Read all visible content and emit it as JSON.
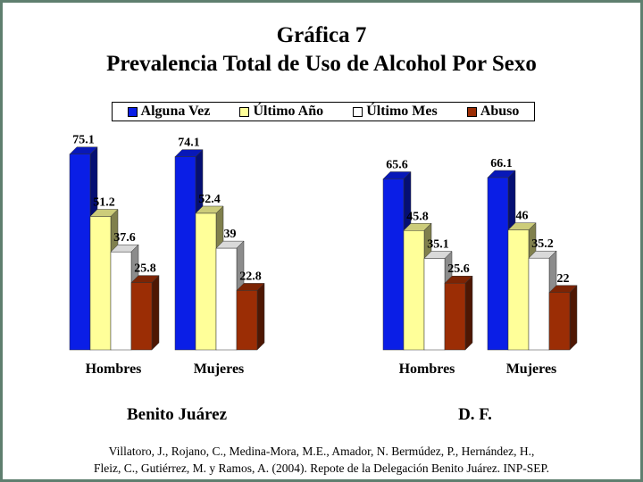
{
  "title_line1": "Gráfica 7",
  "title_line2": "Prevalencia Total de Uso de Alcohol Por Sexo",
  "legend": [
    {
      "label": "Alguna Vez",
      "color": "#0a1ee6"
    },
    {
      "label": "Último Año",
      "color": "#ffff99"
    },
    {
      "label": "Último Mes",
      "color": "#ffffff"
    },
    {
      "label": "Abuso",
      "color": "#9b2d05"
    }
  ],
  "group_titles": [
    "Benito Juárez",
    "D. F."
  ],
  "source_line1": "Villatoro, J., Rojano, C., Medina-Mora, M.E., Amador, N. Bermúdez, P., Hernández, H.,",
  "source_line2": "Fleiz, C., Gutiérrez, M. y Ramos, A. (2004). Repote de la Delegación Benito Juárez. INP-SEP.",
  "chart_data": [
    {
      "type": "bar",
      "group": "Benito Juárez",
      "categories": [
        "Hombres",
        "Mujeres"
      ],
      "series": [
        {
          "name": "Alguna Vez",
          "values": [
            75.1,
            74.1
          ]
        },
        {
          "name": "Último Año",
          "values": [
            51.2,
            52.4
          ]
        },
        {
          "name": "Último Mes",
          "values": [
            37.6,
            39
          ]
        },
        {
          "name": "Abuso",
          "values": [
            25.8,
            22.8
          ]
        }
      ]
    },
    {
      "type": "bar",
      "group": "D. F.",
      "categories": [
        "Hombres",
        "Mujeres"
      ],
      "series": [
        {
          "name": "Alguna Vez",
          "values": [
            65.6,
            66.1
          ]
        },
        {
          "name": "Último Año",
          "values": [
            45.8,
            46
          ]
        },
        {
          "name": "Último Mes",
          "values": [
            35.1,
            35.2
          ]
        },
        {
          "name": "Abuso",
          "values": [
            25.6,
            22
          ]
        }
      ]
    }
  ]
}
